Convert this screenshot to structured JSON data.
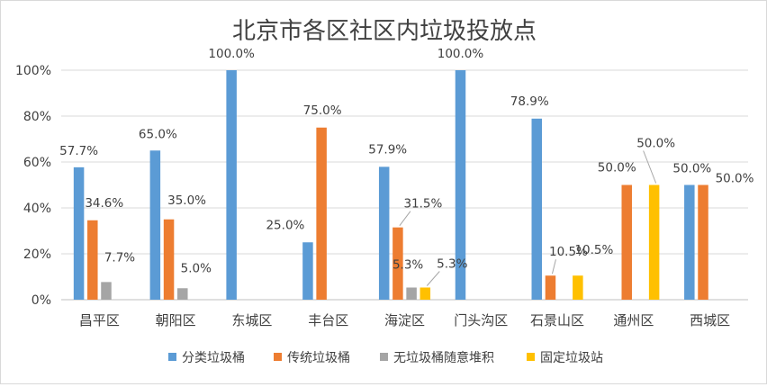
{
  "chart_data": {
    "type": "bar",
    "title": "北京市各区社区内垃圾投放点",
    "categories": [
      "昌平区",
      "朝阳区",
      "东城区",
      "丰台区",
      "海淀区",
      "门头沟区",
      "石景山区",
      "通州区",
      "西城区"
    ],
    "series": [
      {
        "name": "分类垃圾桶",
        "color": "#5b9bd5",
        "values": [
          57.7,
          65.0,
          100.0,
          25.0,
          57.9,
          100.0,
          78.9,
          null,
          50.0
        ]
      },
      {
        "name": "传统垃圾桶",
        "color": "#ed7d31",
        "values": [
          34.6,
          35.0,
          null,
          75.0,
          31.5,
          null,
          10.5,
          50.0,
          50.0
        ]
      },
      {
        "name": "无垃圾桶随意堆积",
        "color": "#a5a5a5",
        "values": [
          7.7,
          5.0,
          null,
          null,
          5.3,
          null,
          null,
          null,
          null
        ]
      },
      {
        "name": "固定垃圾站",
        "color": "#ffc000",
        "values": [
          null,
          null,
          null,
          null,
          5.3,
          null,
          10.5,
          50.0,
          null
        ]
      }
    ],
    "y_ticks": [
      "0%",
      "20%",
      "40%",
      "60%",
      "80%",
      "100%"
    ],
    "ylim": [
      0,
      100
    ],
    "xlabel": "",
    "ylabel": "",
    "grid": true,
    "legend": "bottom"
  }
}
